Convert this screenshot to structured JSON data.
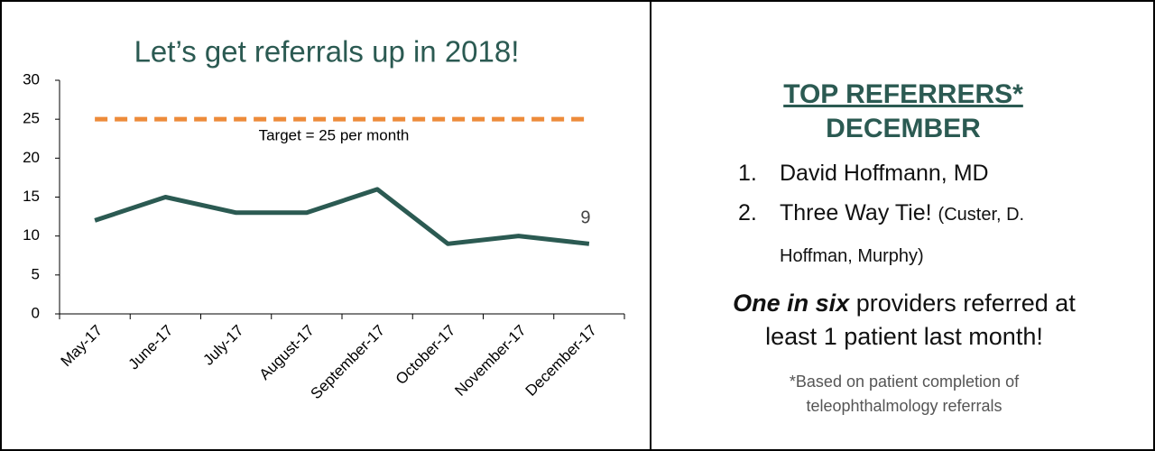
{
  "chart_data": {
    "type": "line",
    "title": "Let’s get referrals up in 2018!",
    "categories": [
      "May-17",
      "June-17",
      "July-17",
      "August-17",
      "September-17",
      "October-17",
      "November-17",
      "December-17"
    ],
    "values": [
      12,
      15,
      13,
      13,
      16,
      9,
      10,
      9
    ],
    "color": "#2b5a52",
    "ylim": [
      0,
      30
    ],
    "yticks": [
      0,
      5,
      10,
      15,
      20,
      25,
      30
    ],
    "grid": false,
    "target": {
      "value": 25,
      "label": "Target = 25 per month",
      "color": "#ed8b3a"
    }
  },
  "panel": {
    "heading": "TOP REFERRERS*",
    "subheading": "DECEMBER",
    "list": [
      {
        "number": "1.",
        "text": "David Hoffmann, MD"
      },
      {
        "number": "2.",
        "text": "Three Way Tie!",
        "note": "(Custer, D. Hoffman, Murphy)"
      }
    ],
    "highlight": {
      "emphasis": "One in six",
      "text": "providers referred at least 1 patient last month!"
    },
    "footnote": "*Based on patient completion of teleophthalmology referrals"
  }
}
